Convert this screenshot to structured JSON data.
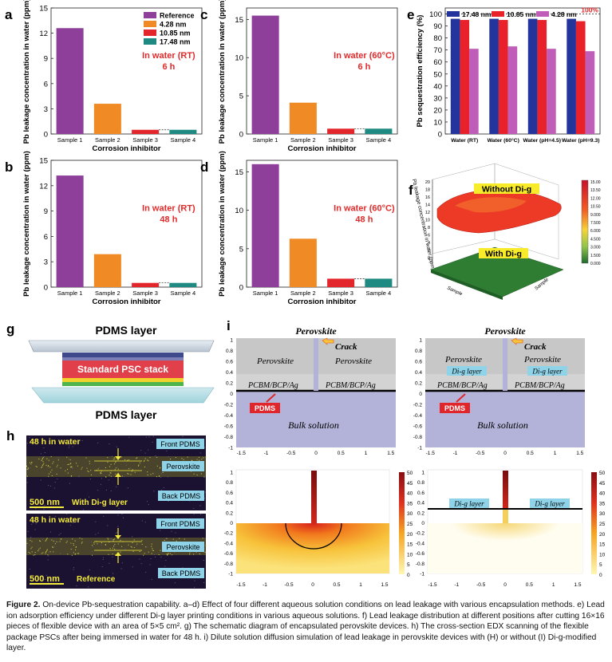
{
  "panels": {
    "a": {
      "letter": "a",
      "ylabel": "Pb leakage concentration in water (ppm)",
      "xlabel": "Corrosion inhibitor",
      "condition": "In water (RT)",
      "time": "6 h"
    },
    "b": {
      "letter": "b",
      "ylabel": "Pb leakage concentration in water (ppm)",
      "xlabel": "Corrosion inhibitor",
      "condition": "In water (RT)",
      "time": "48 h"
    },
    "c": {
      "letter": "c",
      "ylabel": "Pb leakage concentration in water (ppm)",
      "xlabel": "Corrosion inhibitor",
      "condition": "In water (60°C)",
      "time": "6 h"
    },
    "d": {
      "letter": "d",
      "ylabel": "Pb leakage concentration in water (ppm)",
      "xlabel": "Corrosion inhibitor",
      "condition": "In water (60°C)",
      "time": "48 h"
    },
    "e": {
      "letter": "e",
      "ylabel": "Pb sequestration efficiency (%)",
      "hundred_label": "100%"
    },
    "f": {
      "letter": "f",
      "zlabel": "Pb leakage concentration in water (ppm)",
      "label_top": "Without Di-g",
      "label_bottom": "With Di-g",
      "axis_x": "Sample",
      "axis_y": "Sample",
      "colorbar_ticks": [
        "15.00",
        "13.50",
        "12.00",
        "10.50",
        "9.000",
        "7.500",
        "6.000",
        "4.500",
        "3.000",
        "1.500",
        "0.000"
      ],
      "z_ticks": [
        "20",
        "18",
        "16",
        "14",
        "12",
        "10",
        "8",
        "6",
        "4",
        "2",
        "0"
      ]
    },
    "g": {
      "letter": "g",
      "top_label": "PDMS layer",
      "stack_label": "Standard PSC stack",
      "bottom_label": "PDMS layer"
    },
    "h": {
      "letter": "h",
      "top": {
        "time": "48 h in water",
        "front": "Front PDMS",
        "middle": "Perovskite",
        "back": "Back PDMS",
        "scale": "500 nm",
        "note": "With Di-g layer"
      },
      "bottom": {
        "time": "48 h in water",
        "front": "Front PDMS",
        "middle": "Perovskite",
        "back": "Back PDMS",
        "scale": "500 nm",
        "note": "Reference"
      }
    },
    "i": {
      "letter": "i",
      "perovskite_title": "Perovskite",
      "crack": "Crack",
      "perovskite_left": "Perovskite",
      "perovskite_right": "Perovskite",
      "pcbm_left": "PCBM/BCP/Ag",
      "pcbm_right": "PCBM/BCP/Ag",
      "pdms": "PDMS",
      "bulk": "Bulk solution",
      "dig_left": "Di-g layer",
      "dig_right": "Di-g layer",
      "y_ticks": [
        "1",
        "0.8",
        "0.6",
        "0.4",
        "0.2",
        "0",
        "-0.2",
        "-0.4",
        "-0.6",
        "-0.8",
        "-1"
      ],
      "x_ticks": [
        "-1.5",
        "-1",
        "-0.5",
        "0",
        "0.5",
        "1",
        "1.5"
      ],
      "colorbar_ticks": [
        "50",
        "45",
        "40",
        "35",
        "30",
        "25",
        "20",
        "15",
        "10",
        "5",
        "0"
      ]
    }
  },
  "chart_data": [
    {
      "type": "bar",
      "panel": "a",
      "categories": [
        "Sample 1",
        "Sample 2",
        "Sample 3",
        "Sample 4"
      ],
      "values": [
        12.6,
        3.6,
        0.5,
        0.5
      ],
      "ylim": [
        0,
        15
      ],
      "yticks": [
        "0",
        "3",
        "6",
        "9",
        "12",
        "15"
      ],
      "legend": [
        "Reference",
        "4.28 nm",
        "10.85 nm",
        "17.48 nm"
      ],
      "colors": [
        "#8e3f9a",
        "#f08a24",
        "#e3262b",
        "#1f8a82"
      ]
    },
    {
      "type": "bar",
      "panel": "b",
      "categories": [
        "Sample 1",
        "Sample 2",
        "Sample 3",
        "Sample 4"
      ],
      "values": [
        13.2,
        3.9,
        0.5,
        0.5
      ],
      "ylim": [
        0,
        15
      ],
      "yticks": [
        "0",
        "3",
        "6",
        "9",
        "12",
        "15"
      ],
      "colors": [
        "#8e3f9a",
        "#f08a24",
        "#e3262b",
        "#1f8a82"
      ]
    },
    {
      "type": "bar",
      "panel": "c",
      "categories": [
        "Sample 1",
        "Sample 2",
        "Sample 3",
        "Sample 4"
      ],
      "values": [
        15.5,
        4.1,
        0.7,
        0.7
      ],
      "ylim": [
        0,
        16.5
      ],
      "yticks": [
        "0",
        "5",
        "10",
        "15"
      ],
      "colors": [
        "#8e3f9a",
        "#f08a24",
        "#e3262b",
        "#1f8a82"
      ]
    },
    {
      "type": "bar",
      "panel": "d",
      "categories": [
        "Sample 1",
        "Sample 2",
        "Sample 3",
        "Sample 4"
      ],
      "values": [
        16.0,
        6.3,
        1.1,
        1.1
      ],
      "ylim": [
        0,
        16.5
      ],
      "yticks": [
        "0",
        "5",
        "10",
        "15"
      ],
      "colors": [
        "#8e3f9a",
        "#f08a24",
        "#e3262b",
        "#1f8a82"
      ]
    },
    {
      "type": "bar",
      "panel": "e",
      "categories": [
        "Water (RT)",
        "Water (60°C)",
        "Water (pH=4.5)",
        "Water (pH=9.3)"
      ],
      "series": [
        {
          "name": "17.48 nm",
          "color": "#23359c",
          "values": [
            96,
            96,
            96,
            96
          ]
        },
        {
          "name": "10.85 nm",
          "color": "#e8212a",
          "values": [
            95,
            95,
            95,
            94
          ]
        },
        {
          "name": "4.28 nm",
          "color": "#c05db8",
          "values": [
            71,
            73,
            71,
            69
          ]
        }
      ],
      "ylim": [
        0,
        105
      ],
      "yticks": [
        "0",
        "10",
        "20",
        "30",
        "40",
        "50",
        "60",
        "70",
        "80",
        "90",
        "100"
      ]
    }
  ],
  "caption": {
    "bold": "Figure 2.",
    "text": "On-device Pb-sequestration capability. a–d) Effect of four different aqueous solution conditions on lead leakage with various encapsulation methods. e) Lead ion adsorption efficiency under different Di-g layer printing conditions in various aqueous solutions. f) Lead leakage distribution at different positions after cutting 16×16 pieces of flexible device with an area of 5×5 cm². g) The schematic diagram of encapsulated perovskite devices. h) The cross-section EDX scanning of the flexible package PSCs after being immersed in water for 48 h. i) Dilute solution diffusion simulation of lead leakage in perovskite devices with (H) or without (I) Di-g-modified layer."
  }
}
